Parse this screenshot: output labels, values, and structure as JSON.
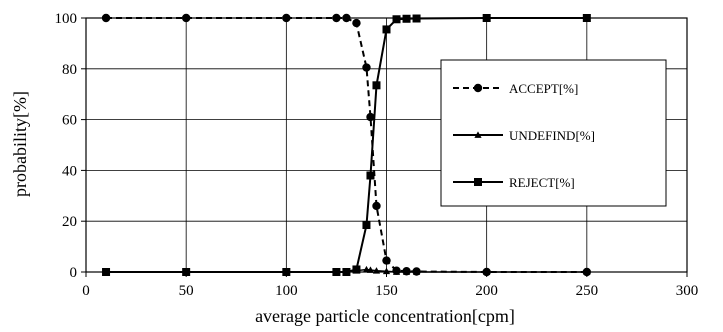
{
  "chart_data": {
    "type": "line",
    "title": "",
    "xlabel": "average particle concentration[cpm]",
    "ylabel": "probability[%]",
    "xlim": [
      0,
      300
    ],
    "ylim": [
      0,
      100
    ],
    "x_ticks": [
      "0",
      "50",
      "100",
      "150",
      "200",
      "250",
      "300"
    ],
    "y_ticks": [
      "0",
      "20",
      "40",
      "60",
      "80",
      "100"
    ],
    "grid": true,
    "legend_position": "right",
    "series": [
      {
        "name": "ACCEPT[%]",
        "marker": "circle",
        "line_style": "dashed",
        "color": "#000000",
        "x": [
          10,
          50,
          100,
          125,
          130,
          135,
          140,
          142,
          145,
          150,
          155,
          160,
          165,
          200,
          250
        ],
        "y": [
          100,
          100,
          100,
          100,
          100,
          98,
          80.5,
          61,
          26,
          4.5,
          0.5,
          0.3,
          0.2,
          0,
          0
        ]
      },
      {
        "name": "UNDEFIND[%]",
        "marker": "triangle",
        "line_style": "solid",
        "color": "#000000",
        "x": [
          10,
          50,
          100,
          125,
          130,
          135,
          140,
          142,
          145,
          150,
          155,
          160,
          165,
          200,
          250
        ],
        "y": [
          0,
          0,
          0,
          0,
          0,
          0.5,
          1,
          0.8,
          0.5,
          0.3,
          0,
          0,
          0,
          0,
          0
        ]
      },
      {
        "name": "REJECT[%]",
        "marker": "square",
        "line_style": "solid",
        "color": "#000000",
        "x": [
          10,
          50,
          100,
          125,
          130,
          135,
          140,
          142,
          145,
          150,
          155,
          160,
          165,
          200,
          250
        ],
        "y": [
          0,
          0,
          0,
          0,
          0,
          1,
          18.5,
          38,
          73.5,
          95.5,
          99.5,
          99.7,
          99.8,
          100,
          100
        ]
      }
    ]
  }
}
